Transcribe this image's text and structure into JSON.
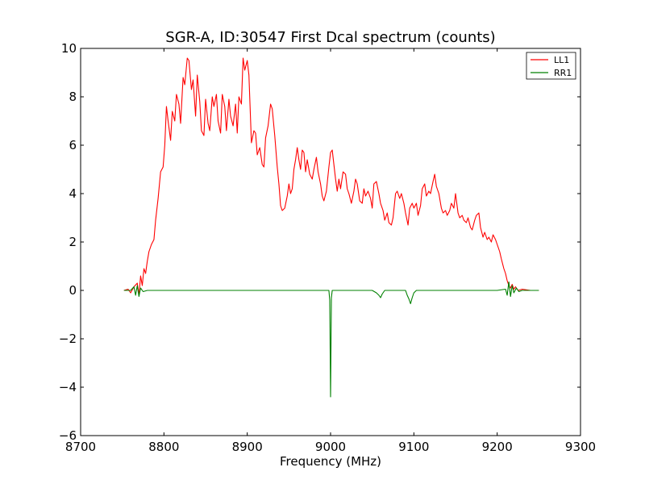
{
  "chart_data": {
    "type": "line",
    "title": "SGR-A, ID:30547 First Dcal spectrum (counts)",
    "xlabel": "Frequency (MHz)",
    "ylabel": "",
    "xlim": [
      8700,
      9300
    ],
    "ylim": [
      -6,
      10
    ],
    "xticks": [
      8700,
      8800,
      8900,
      9000,
      9100,
      9200,
      9300
    ],
    "yticks": [
      -6,
      -4,
      -2,
      0,
      2,
      4,
      6,
      8,
      10
    ],
    "xtick_labels": [
      "8700",
      "8800",
      "8900",
      "9000",
      "9100",
      "9200",
      "9300"
    ],
    "ytick_labels": [
      "−6",
      "−4",
      "−2",
      "0",
      "2",
      "4",
      "6",
      "8",
      "10"
    ],
    "grid": false,
    "legend_position": "top-right",
    "series": [
      {
        "name": "LL1",
        "color": "#ff0000",
        "points": [
          [
            8752,
            0.0
          ],
          [
            8757,
            0.05
          ],
          [
            8760,
            -0.1
          ],
          [
            8764,
            0.15
          ],
          [
            8768,
            0.3
          ],
          [
            8770,
            -0.2
          ],
          [
            8772,
            0.6
          ],
          [
            8774,
            0.2
          ],
          [
            8776,
            0.9
          ],
          [
            8778,
            0.7
          ],
          [
            8780,
            1.2
          ],
          [
            8782,
            1.6
          ],
          [
            8785,
            1.9
          ],
          [
            8788,
            2.1
          ],
          [
            8790,
            2.9
          ],
          [
            8793,
            3.8
          ],
          [
            8796,
            4.9
          ],
          [
            8799,
            5.1
          ],
          [
            8801,
            6.0
          ],
          [
            8803,
            7.6
          ],
          [
            8805,
            7.0
          ],
          [
            8808,
            6.2
          ],
          [
            8810,
            7.4
          ],
          [
            8813,
            7.0
          ],
          [
            8815,
            8.1
          ],
          [
            8818,
            7.7
          ],
          [
            8820,
            6.9
          ],
          [
            8823,
            8.8
          ],
          [
            8825,
            8.5
          ],
          [
            8828,
            9.6
          ],
          [
            8830,
            9.5
          ],
          [
            8833,
            8.3
          ],
          [
            8835,
            8.7
          ],
          [
            8838,
            7.2
          ],
          [
            8840,
            8.9
          ],
          [
            8843,
            7.8
          ],
          [
            8845,
            6.6
          ],
          [
            8848,
            6.4
          ],
          [
            8850,
            7.9
          ],
          [
            8853,
            6.9
          ],
          [
            8855,
            6.6
          ],
          [
            8858,
            8.0
          ],
          [
            8860,
            7.6
          ],
          [
            8863,
            8.1
          ],
          [
            8865,
            7.0
          ],
          [
            8868,
            6.5
          ],
          [
            8870,
            8.1
          ],
          [
            8873,
            7.6
          ],
          [
            8875,
            6.6
          ],
          [
            8878,
            7.9
          ],
          [
            8880,
            7.2
          ],
          [
            8883,
            6.8
          ],
          [
            8886,
            7.7
          ],
          [
            8888,
            6.5
          ],
          [
            8890,
            8.0
          ],
          [
            8893,
            7.7
          ],
          [
            8895,
            9.6
          ],
          [
            8897,
            9.1
          ],
          [
            8900,
            9.5
          ],
          [
            8902,
            8.9
          ],
          [
            8905,
            6.1
          ],
          [
            8908,
            6.6
          ],
          [
            8910,
            6.5
          ],
          [
            8912,
            5.6
          ],
          [
            8915,
            5.9
          ],
          [
            8918,
            5.2
          ],
          [
            8920,
            5.1
          ],
          [
            8922,
            6.3
          ],
          [
            8925,
            6.8
          ],
          [
            8928,
            7.7
          ],
          [
            8930,
            7.5
          ],
          [
            8933,
            6.4
          ],
          [
            8936,
            5.1
          ],
          [
            8938,
            4.4
          ],
          [
            8940,
            3.5
          ],
          [
            8942,
            3.3
          ],
          [
            8945,
            3.4
          ],
          [
            8948,
            3.9
          ],
          [
            8950,
            4.4
          ],
          [
            8952,
            4.0
          ],
          [
            8954,
            4.2
          ],
          [
            8956,
            5.0
          ],
          [
            8958,
            5.4
          ],
          [
            8960,
            5.9
          ],
          [
            8962,
            5.4
          ],
          [
            8964,
            5.0
          ],
          [
            8966,
            5.8
          ],
          [
            8968,
            5.7
          ],
          [
            8970,
            4.9
          ],
          [
            8972,
            5.4
          ],
          [
            8975,
            4.8
          ],
          [
            8978,
            4.6
          ],
          [
            8980,
            5.0
          ],
          [
            8983,
            5.5
          ],
          [
            8985,
            4.9
          ],
          [
            8988,
            4.4
          ],
          [
            8990,
            3.9
          ],
          [
            8992,
            3.7
          ],
          [
            8995,
            4.1
          ],
          [
            8998,
            5.1
          ],
          [
            9000,
            5.7
          ],
          [
            9002,
            5.8
          ],
          [
            9004,
            5.2
          ],
          [
            9006,
            4.6
          ],
          [
            9008,
            4.1
          ],
          [
            9010,
            4.6
          ],
          [
            9012,
            4.2
          ],
          [
            9015,
            4.9
          ],
          [
            9018,
            4.8
          ],
          [
            9020,
            4.2
          ],
          [
            9022,
            4.0
          ],
          [
            9025,
            3.6
          ],
          [
            9028,
            4.1
          ],
          [
            9030,
            4.6
          ],
          [
            9032,
            4.4
          ],
          [
            9035,
            3.7
          ],
          [
            9038,
            3.6
          ],
          [
            9040,
            4.2
          ],
          [
            9042,
            3.9
          ],
          [
            9045,
            4.1
          ],
          [
            9048,
            3.8
          ],
          [
            9050,
            3.4
          ],
          [
            9052,
            4.4
          ],
          [
            9055,
            4.5
          ],
          [
            9058,
            4.0
          ],
          [
            9060,
            3.6
          ],
          [
            9063,
            3.3
          ],
          [
            9065,
            2.9
          ],
          [
            9068,
            3.2
          ],
          [
            9070,
            2.8
          ],
          [
            9073,
            2.7
          ],
          [
            9075,
            3.0
          ],
          [
            9078,
            4.0
          ],
          [
            9080,
            4.1
          ],
          [
            9083,
            3.8
          ],
          [
            9085,
            4.0
          ],
          [
            9088,
            3.6
          ],
          [
            9090,
            3.2
          ],
          [
            9093,
            2.7
          ],
          [
            9095,
            3.4
          ],
          [
            9098,
            3.6
          ],
          [
            9100,
            3.4
          ],
          [
            9103,
            3.6
          ],
          [
            9105,
            3.1
          ],
          [
            9108,
            3.5
          ],
          [
            9110,
            4.2
          ],
          [
            9113,
            4.4
          ],
          [
            9115,
            3.9
          ],
          [
            9118,
            4.1
          ],
          [
            9120,
            4.0
          ],
          [
            9123,
            4.5
          ],
          [
            9125,
            4.8
          ],
          [
            9127,
            4.3
          ],
          [
            9130,
            4.0
          ],
          [
            9133,
            3.4
          ],
          [
            9135,
            3.2
          ],
          [
            9138,
            3.3
          ],
          [
            9140,
            3.1
          ],
          [
            9143,
            3.3
          ],
          [
            9145,
            3.6
          ],
          [
            9148,
            3.4
          ],
          [
            9150,
            4.0
          ],
          [
            9153,
            3.2
          ],
          [
            9155,
            3.0
          ],
          [
            9158,
            3.1
          ],
          [
            9160,
            2.9
          ],
          [
            9163,
            2.8
          ],
          [
            9165,
            3.0
          ],
          [
            9168,
            2.6
          ],
          [
            9170,
            2.5
          ],
          [
            9173,
            2.9
          ],
          [
            9175,
            3.1
          ],
          [
            9178,
            3.2
          ],
          [
            9180,
            2.6
          ],
          [
            9183,
            2.2
          ],
          [
            9185,
            2.4
          ],
          [
            9188,
            2.1
          ],
          [
            9190,
            2.2
          ],
          [
            9193,
            2.0
          ],
          [
            9195,
            2.3
          ],
          [
            9198,
            2.1
          ],
          [
            9200,
            1.9
          ],
          [
            9203,
            1.6
          ],
          [
            9205,
            1.3
          ],
          [
            9208,
            0.9
          ],
          [
            9210,
            0.7
          ],
          [
            9212,
            0.4
          ],
          [
            9214,
            0.2
          ],
          [
            9216,
            0.1
          ],
          [
            9218,
            0.25
          ],
          [
            9220,
            0.05
          ],
          [
            9222,
            0.15
          ],
          [
            9225,
            0.0
          ],
          [
            9230,
            0.05
          ],
          [
            9240,
            0.0
          ],
          [
            9250,
            0.0
          ]
        ]
      },
      {
        "name": "RR1",
        "color": "#008000",
        "points": [
          [
            8752,
            0.0
          ],
          [
            8760,
            0.0
          ],
          [
            8764,
            0.15
          ],
          [
            8766,
            -0.2
          ],
          [
            8768,
            0.2
          ],
          [
            8770,
            -0.25
          ],
          [
            8772,
            0.1
          ],
          [
            8775,
            -0.05
          ],
          [
            8780,
            0.0
          ],
          [
            8850,
            0.0
          ],
          [
            8950,
            0.0
          ],
          [
            8998,
            0.0
          ],
          [
            8999,
            -0.4
          ],
          [
            9000,
            -4.4
          ],
          [
            9001,
            -0.3
          ],
          [
            9002,
            0.0
          ],
          [
            9050,
            0.0
          ],
          [
            9055,
            -0.1
          ],
          [
            9058,
            -0.2
          ],
          [
            9060,
            -0.3
          ],
          [
            9062,
            -0.15
          ],
          [
            9065,
            0.0
          ],
          [
            9090,
            0.0
          ],
          [
            9092,
            -0.2
          ],
          [
            9094,
            -0.35
          ],
          [
            9096,
            -0.55
          ],
          [
            9098,
            -0.3
          ],
          [
            9100,
            -0.1
          ],
          [
            9103,
            0.0
          ],
          [
            9200,
            0.0
          ],
          [
            9210,
            0.05
          ],
          [
            9212,
            -0.2
          ],
          [
            9214,
            0.35
          ],
          [
            9216,
            -0.25
          ],
          [
            9218,
            0.2
          ],
          [
            9220,
            -0.1
          ],
          [
            9223,
            0.1
          ],
          [
            9226,
            -0.05
          ],
          [
            9230,
            0.0
          ],
          [
            9250,
            0.0
          ]
        ]
      }
    ]
  }
}
